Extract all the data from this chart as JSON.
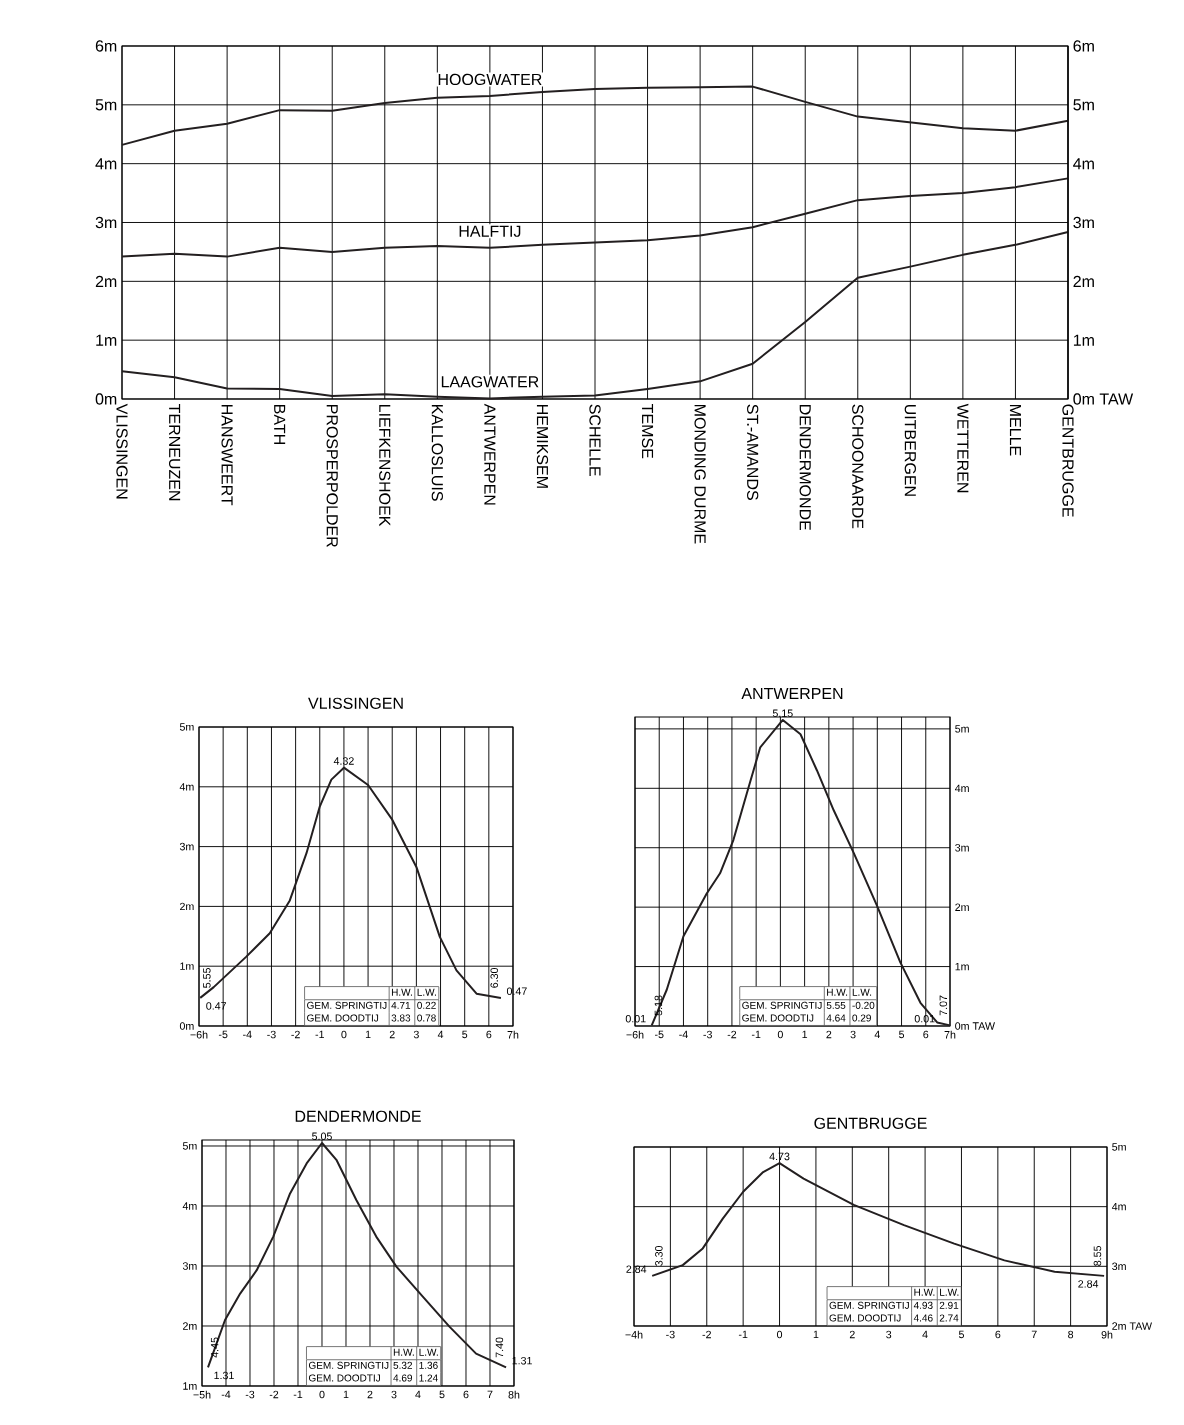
{
  "chart_data": [
    {
      "type": "line",
      "categories": [
        "VLISSINGEN",
        "TERNEUZEN",
        "HANSWEERT",
        "BATH",
        "PROSPERPOLDER",
        "LIEFKENSHOEK",
        "KALLOSLUIS",
        "ANTWERPEN",
        "HEMIKSEM",
        "SCHELLE",
        "TEMSE",
        "MONDING DURME",
        "ST.-AMANDS",
        "DENDERMONDE",
        "SCHOONAARDE",
        "UITBERGEN",
        "WETTEREN",
        "MELLE",
        "GENTBRUGGE"
      ],
      "series": [
        {
          "name": "HOOGWATER",
          "color": "#231f20",
          "values": [
            4.32,
            4.56,
            4.68,
            4.91,
            4.9,
            5.03,
            5.12,
            5.15,
            5.22,
            5.27,
            5.29,
            5.3,
            5.31,
            5.05,
            4.8,
            4.7,
            4.6,
            4.56,
            4.73
          ]
        },
        {
          "name": "HALFTIJ",
          "color": "#231f20",
          "values": [
            2.42,
            2.47,
            2.42,
            2.57,
            2.5,
            2.57,
            2.6,
            2.57,
            2.62,
            2.66,
            2.7,
            2.78,
            2.92,
            3.15,
            3.38,
            3.45,
            3.5,
            3.6,
            3.75
          ]
        },
        {
          "name": "LAAGWATER",
          "color": "#231f20",
          "values": [
            0.47,
            0.37,
            0.18,
            0.17,
            0.05,
            0.08,
            0.04,
            0.01,
            0.04,
            0.06,
            0.17,
            0.3,
            0.6,
            1.31,
            2.06,
            2.25,
            2.45,
            2.62,
            2.84
          ]
        }
      ],
      "ylim": [
        0,
        6
      ],
      "yticks": [
        {
          "value": 0,
          "label": "0m"
        },
        {
          "value": 1,
          "label": "1m"
        },
        {
          "value": 2,
          "label": "2m"
        },
        {
          "value": 3,
          "label": "3m"
        },
        {
          "value": 4,
          "label": "4m"
        },
        {
          "value": 5,
          "label": "5m"
        },
        {
          "value": 6,
          "label": "6m"
        }
      ],
      "y2lim": [
        0,
        6
      ],
      "y2ticks": [
        {
          "value": 0,
          "label": "0m TAW"
        },
        {
          "value": 1,
          "label": "1m"
        },
        {
          "value": 2,
          "label": "2m"
        },
        {
          "value": 3,
          "label": "3m"
        },
        {
          "value": 4,
          "label": "4m"
        },
        {
          "value": 5,
          "label": "5m"
        },
        {
          "value": 6,
          "label": "6m"
        }
      ],
      "grid": true
    },
    {
      "type": "line",
      "title": "VLISSINGEN",
      "series": [
        {
          "color": "#231f20",
          "x": [
            -5.95,
            -5.39,
            -4.04,
            -3.07,
            -2.24,
            -1.55,
            -1.0,
            -0.52,
            0,
            1.0,
            2.0,
            3.0,
            3.97,
            4.66,
            5.49,
            6.5
          ],
          "values": [
            0.47,
            0.65,
            1.16,
            1.55,
            2.1,
            2.89,
            3.67,
            4.12,
            4.32,
            4.03,
            3.45,
            2.66,
            1.49,
            0.93,
            0.54,
            0.47
          ]
        }
      ],
      "xlim": [
        -6,
        7
      ],
      "xticks": [
        {
          "value": -6,
          "label": "−6h"
        },
        -5,
        -4,
        -3,
        -2,
        -1,
        0,
        1,
        2,
        3,
        4,
        5,
        6,
        {
          "value": 7,
          "label": "7h"
        }
      ],
      "ylim": [
        0,
        5
      ],
      "yticks": [
        {
          "value": 0,
          "label": "0m"
        },
        {
          "value": 1,
          "label": "1m"
        },
        {
          "value": 2,
          "label": "2m"
        },
        {
          "value": 3,
          "label": "3m"
        },
        {
          "value": 4,
          "label": "4m"
        },
        {
          "value": 5,
          "label": "5m"
        }
      ],
      "grid": true,
      "annotations": [
        {
          "text": "4.32",
          "x": 0,
          "y": 4.32
        },
        {
          "text": "0.47",
          "x": -5.95,
          "y": 0.47
        },
        {
          "text": "5.55",
          "x": -5.95,
          "y": 0.47
        },
        {
          "text": "0.47",
          "x": 6.5,
          "y": 0.47
        },
        {
          "text": "6.30",
          "x": 6.5,
          "y": 0.47
        },
        "H.W.",
        "L.W.",
        "GEM. SPRINGTIJ",
        "4.71",
        "0.22",
        "GEM. DOODTIJ",
        "3.83",
        "0.78"
      ]
    },
    {
      "type": "line",
      "title": "ANTWERPEN",
      "series": [
        {
          "color": "#231f20",
          "x": [
            -5.31,
            -4.69,
            -4.0,
            -3.04,
            -2.49,
            -1.94,
            -1.39,
            -0.83,
            0.1,
            0.83,
            1.51,
            2.2,
            3.03,
            3.99,
            4.95,
            5.78,
            6.47,
            7.0
          ],
          "values": [
            0.01,
            0.61,
            1.51,
            2.23,
            2.57,
            3.13,
            3.91,
            4.69,
            5.15,
            4.91,
            4.3,
            3.63,
            2.91,
            2.02,
            1.07,
            0.39,
            0.06,
            0.01
          ]
        }
      ],
      "xlim": [
        -6,
        7
      ],
      "xticks": [
        {
          "value": -6,
          "label": "−6h"
        },
        -5,
        -4,
        -3,
        -2,
        -1,
        0,
        1,
        2,
        3,
        4,
        5,
        6,
        {
          "value": 7,
          "label": "7h"
        }
      ],
      "ylim": [
        0,
        5.2
      ],
      "yticks": [
        {
          "value": 0,
          "label": "0m TAW"
        },
        {
          "value": 1,
          "label": "1m"
        },
        {
          "value": 2,
          "label": "2m"
        },
        {
          "value": 3,
          "label": "3m"
        },
        {
          "value": 4,
          "label": "4m"
        },
        {
          "value": 5,
          "label": "5m"
        }
      ],
      "grid": true,
      "annotations": [
        {
          "text": "5.15",
          "x": 0.1,
          "y": 5.15
        },
        {
          "text": "0.01",
          "x": -5.31,
          "y": 0.01
        },
        {
          "text": "5.18",
          "x": -5.31,
          "y": 0.01
        },
        {
          "text": "0.01",
          "x": 7.0,
          "y": 0.01
        },
        {
          "text": "7.07",
          "x": 7.0,
          "y": 0.01
        },
        "H.W.",
        "L.W.",
        "GEM. SPRINGTIJ",
        "5.55",
        "-0.20",
        "GEM. DOODTIJ",
        "4.64",
        "0.29"
      ]
    },
    {
      "type": "line",
      "title": "DENDERMONDE",
      "series": [
        {
          "color": "#231f20",
          "x": [
            -4.75,
            -4.04,
            -3.41,
            -2.72,
            -2.03,
            -1.33,
            -0.64,
            0,
            0.6,
            1.43,
            2.26,
            3.1,
            4.2,
            5.31,
            6.42,
            7.67
          ],
          "values": [
            1.31,
            2.1,
            2.54,
            2.93,
            3.49,
            4.21,
            4.71,
            5.05,
            4.77,
            4.1,
            3.49,
            2.99,
            2.49,
            1.99,
            1.54,
            1.31
          ]
        }
      ],
      "xlim": [
        -5,
        8
      ],
      "xticks": [
        {
          "value": -5,
          "label": "−5h"
        },
        -4,
        -3,
        -2,
        -1,
        0,
        1,
        2,
        3,
        4,
        5,
        6,
        7,
        {
          "value": 8,
          "label": "8h"
        }
      ],
      "ylim": [
        1,
        5.1
      ],
      "yticks": [
        {
          "value": 1,
          "label": "1m"
        },
        {
          "value": 2,
          "label": "2m"
        },
        {
          "value": 3,
          "label": "3m"
        },
        {
          "value": 4,
          "label": "4m"
        },
        {
          "value": 5,
          "label": "5m"
        }
      ],
      "grid": true,
      "annotations": [
        {
          "text": "5.05",
          "x": 0,
          "y": 5.05
        },
        {
          "text": "1.31",
          "x": -4.75,
          "y": 1.31
        },
        {
          "text": "4.45",
          "x": -4.75,
          "y": 1.31
        },
        {
          "text": "1.31",
          "x": 7.67,
          "y": 1.31
        },
        {
          "text": "7.40",
          "x": 7.67,
          "y": 1.31
        },
        "H.W.",
        "L.W.",
        "GEM. SPRINGTIJ",
        "5.32",
        "1.36",
        "GEM. DOODTIJ",
        "4.69",
        "1.24"
      ]
    },
    {
      "type": "line",
      "title": "GENTBRUGGE",
      "series": [
        {
          "color": "#231f20",
          "x": [
            -3.5,
            -2.66,
            -2.11,
            -1.56,
            -1.0,
            -0.45,
            0,
            0.66,
            2.04,
            3.42,
            4.8,
            6.18,
            7.56,
            8.92
          ],
          "values": [
            2.84,
            3.02,
            3.3,
            3.8,
            4.25,
            4.58,
            4.73,
            4.47,
            4.03,
            3.69,
            3.38,
            3.1,
            2.91,
            2.84
          ]
        }
      ],
      "xlim": [
        -4,
        9
      ],
      "xticks": [
        {
          "value": -4,
          "label": "−4h"
        },
        -3,
        -2,
        -1,
        0,
        1,
        2,
        3,
        4,
        5,
        6,
        7,
        8,
        {
          "value": 9,
          "label": "9h"
        }
      ],
      "ylim": [
        2,
        5
      ],
      "yticks": [
        {
          "value": 2,
          "label": "2m TAW"
        },
        {
          "value": 3,
          "label": "3m"
        },
        {
          "value": 4,
          "label": "4m"
        },
        {
          "value": 5,
          "label": "5m"
        }
      ],
      "grid": true,
      "annotations": [
        {
          "text": "4.73",
          "x": 0,
          "y": 4.73
        },
        {
          "text": "2.84",
          "x": -3.5,
          "y": 2.84
        },
        {
          "text": "3.30",
          "x": -3.5,
          "y": 2.84
        },
        {
          "text": "2.84",
          "x": 8.92,
          "y": 2.84
        },
        {
          "text": "8.55",
          "x": 8.92,
          "y": 2.84
        },
        "H.W.",
        "L.W.",
        "GEM. SPRINGTIJ",
        "4.93",
        "2.91",
        "GEM. DOODTIJ",
        "4.46",
        "2.74"
      ]
    }
  ]
}
